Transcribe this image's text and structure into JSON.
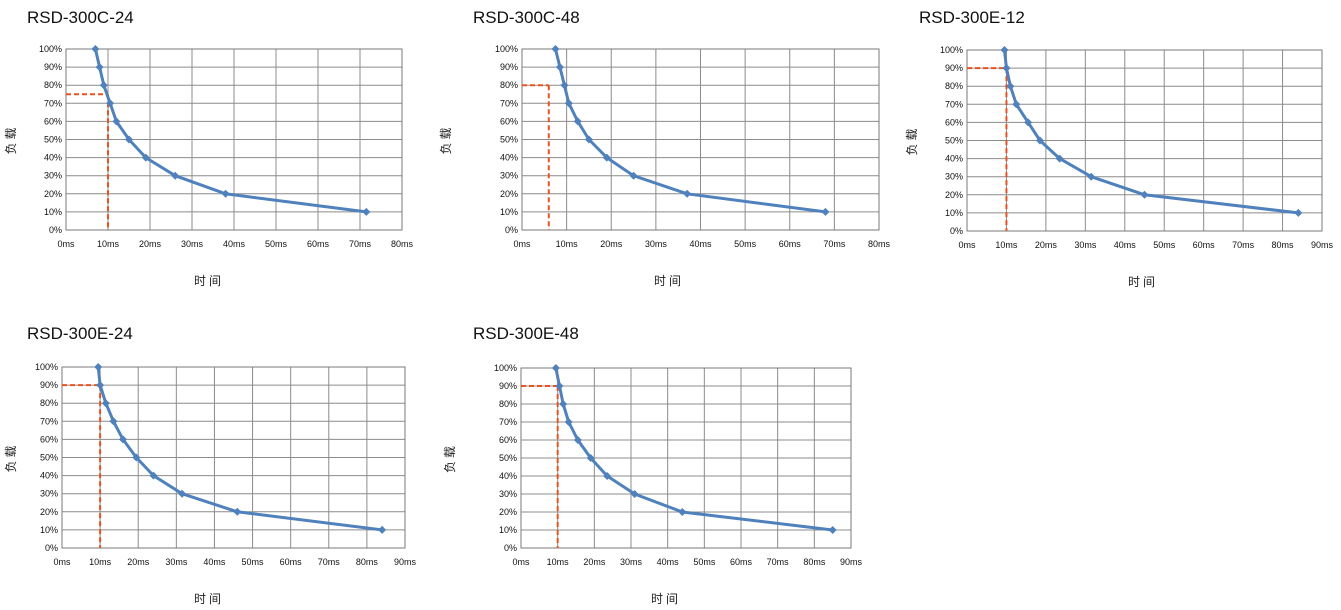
{
  "colors": {
    "series": "#4f81bd",
    "marker": "#4f81bd",
    "reference": "#e8541e",
    "grid": "#8c8c8c"
  },
  "chart_data": [
    {
      "type": "line",
      "title": "RSD-300C-24",
      "xlabel": "时间",
      "ylabel": "负载",
      "xlim": [
        0,
        80
      ],
      "ylim": [
        0,
        100
      ],
      "x_ticks": [
        "0ms",
        "10ms",
        "20ms",
        "30ms",
        "40ms",
        "50ms",
        "60ms",
        "70ms",
        "80ms"
      ],
      "y_ticks": [
        "0%",
        "10%",
        "20%",
        "30%",
        "40%",
        "50%",
        "60%",
        "70%",
        "80%",
        "90%",
        "100%"
      ],
      "grid": true,
      "series": [
        {
          "points": [
            [
              7,
              100
            ],
            [
              8,
              90
            ],
            [
              9,
              80
            ],
            [
              10.5,
              70
            ],
            [
              12,
              60
            ],
            [
              15,
              50
            ],
            [
              19,
              40
            ],
            [
              26,
              30
            ],
            [
              38,
              20
            ],
            [
              71.5,
              10
            ]
          ]
        }
      ],
      "reference": {
        "x": 10,
        "y": 75
      }
    },
    {
      "type": "line",
      "title": "RSD-300C-48",
      "xlabel": "时间",
      "ylabel": "负载",
      "xlim": [
        0,
        80
      ],
      "ylim": [
        0,
        100
      ],
      "x_ticks": [
        "0ms",
        "10ms",
        "20ms",
        "30ms",
        "40ms",
        "50ms",
        "60ms",
        "70ms",
        "80ms"
      ],
      "y_ticks": [
        "0%",
        "10%",
        "20%",
        "30%",
        "40%",
        "50%",
        "60%",
        "70%",
        "80%",
        "90%",
        "100%"
      ],
      "grid": true,
      "series": [
        {
          "points": [
            [
              7.5,
              100
            ],
            [
              8.5,
              90
            ],
            [
              9.5,
              80
            ],
            [
              10.5,
              70
            ],
            [
              12.5,
              60
            ],
            [
              15,
              50
            ],
            [
              19,
              40
            ],
            [
              25,
              30
            ],
            [
              37,
              20
            ],
            [
              68,
              10
            ]
          ]
        }
      ],
      "reference": {
        "x": 6,
        "y": 80
      }
    },
    {
      "type": "line",
      "title": "RSD-300E-12",
      "xlabel": "时间",
      "ylabel": "负载",
      "xlim": [
        0,
        90
      ],
      "ylim": [
        0,
        100
      ],
      "x_ticks": [
        "0ms",
        "10ms",
        "20ms",
        "30ms",
        "40ms",
        "50ms",
        "60ms",
        "70ms",
        "80ms",
        "90ms"
      ],
      "y_ticks": [
        "0%",
        "10%",
        "20%",
        "30%",
        "40%",
        "50%",
        "60%",
        "70%",
        "80%",
        "90%",
        "100%"
      ],
      "grid": true,
      "series": [
        {
          "points": [
            [
              9.5,
              100
            ],
            [
              10,
              90
            ],
            [
              11,
              80
            ],
            [
              12.5,
              70
            ],
            [
              15.5,
              60
            ],
            [
              18.5,
              50
            ],
            [
              23.5,
              40
            ],
            [
              31.5,
              30
            ],
            [
              45,
              20
            ],
            [
              84,
              10
            ]
          ]
        }
      ],
      "reference": {
        "x": 10,
        "y": 90
      }
    },
    {
      "type": "line",
      "title": "RSD-300E-24",
      "xlabel": "时间",
      "ylabel": "负载",
      "xlim": [
        0,
        90
      ],
      "ylim": [
        0,
        100
      ],
      "x_ticks": [
        "0ms",
        "10ms",
        "20ms",
        "30ms",
        "40ms",
        "50ms",
        "60ms",
        "70ms",
        "80ms",
        "90ms"
      ],
      "y_ticks": [
        "0%",
        "10%",
        "20%",
        "30%",
        "40%",
        "50%",
        "60%",
        "70%",
        "80%",
        "90%",
        "100%"
      ],
      "grid": true,
      "series": [
        {
          "points": [
            [
              9.5,
              100
            ],
            [
              10,
              90
            ],
            [
              11.5,
              80
            ],
            [
              13.5,
              70
            ],
            [
              16,
              60
            ],
            [
              19.5,
              50
            ],
            [
              24,
              40
            ],
            [
              31.5,
              30
            ],
            [
              46,
              20
            ],
            [
              84,
              10
            ]
          ]
        }
      ],
      "reference": {
        "x": 10,
        "y": 90
      }
    },
    {
      "type": "line",
      "title": "RSD-300E-48",
      "xlabel": "时间",
      "ylabel": "负载",
      "xlim": [
        0,
        90
      ],
      "ylim": [
        0,
        100
      ],
      "x_ticks": [
        "0ms",
        "10ms",
        "20ms",
        "30ms",
        "40ms",
        "50ms",
        "60ms",
        "70ms",
        "80ms",
        "90ms"
      ],
      "y_ticks": [
        "0%",
        "10%",
        "20%",
        "30%",
        "40%",
        "50%",
        "60%",
        "70%",
        "80%",
        "90%",
        "100%"
      ],
      "grid": true,
      "series": [
        {
          "points": [
            [
              9.5,
              100
            ],
            [
              10.5,
              90
            ],
            [
              11.5,
              80
            ],
            [
              13,
              70
            ],
            [
              15.5,
              60
            ],
            [
              19,
              50
            ],
            [
              23.5,
              40
            ],
            [
              31,
              30
            ],
            [
              44,
              20
            ],
            [
              85,
              10
            ]
          ]
        }
      ],
      "reference": {
        "x": 10,
        "y": 90
      }
    }
  ]
}
